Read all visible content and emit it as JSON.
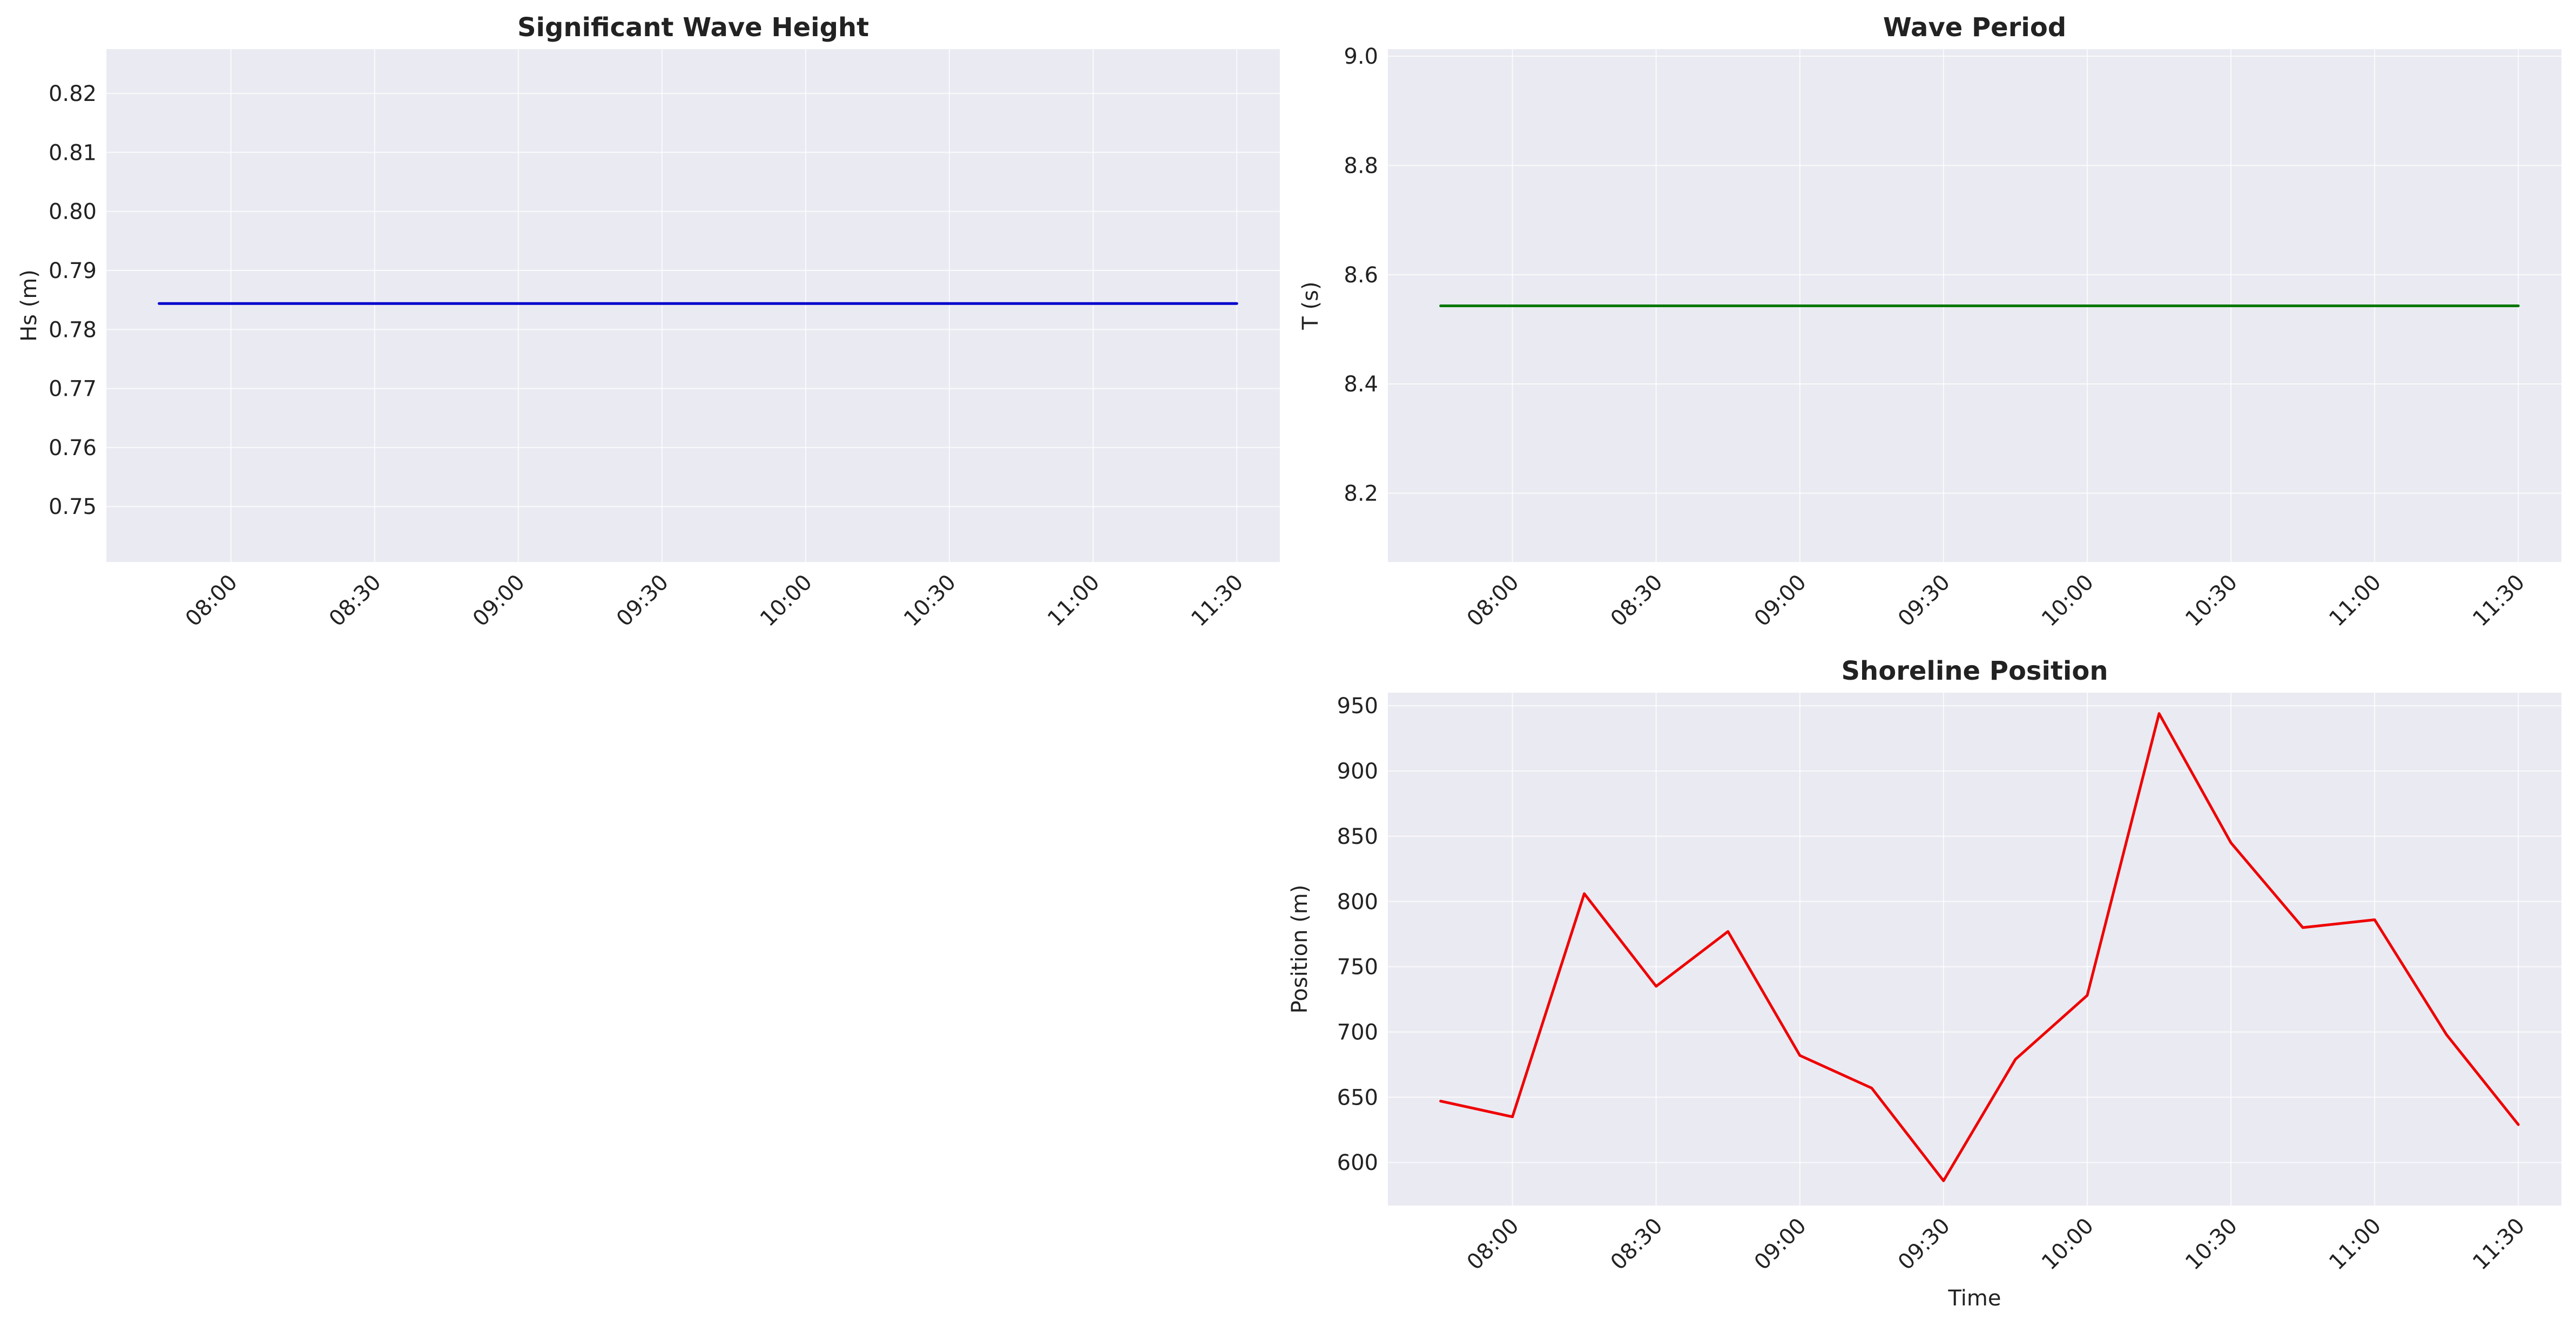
{
  "chart_data": [
    {
      "id": "wave-height",
      "type": "line",
      "title": "Significant Wave Height",
      "xlabel": "",
      "ylabel": "Hs (m)",
      "x": [
        "07:45",
        "08:00",
        "08:15",
        "08:30",
        "08:45",
        "09:00",
        "09:15",
        "09:30",
        "09:45",
        "10:00",
        "10:15",
        "10:30",
        "10:45",
        "11:00",
        "11:15",
        "11:30"
      ],
      "series": [
        {
          "color": "#0000cc",
          "values": [
            0.7844,
            0.7844,
            0.7844,
            0.7844,
            0.7844,
            0.7844,
            0.7844,
            0.7844,
            0.7844,
            0.7844,
            0.7844,
            0.7844,
            0.7844,
            0.7844,
            0.7844,
            0.7844
          ]
        }
      ],
      "xlim": [
        "07:34",
        "11:39"
      ],
      "ylim": [
        0.7406,
        0.8275
      ],
      "xticks": [
        "08:00",
        "08:30",
        "09:00",
        "09:30",
        "10:00",
        "10:30",
        "11:00",
        "11:30"
      ],
      "yticks": [
        "0.75",
        "0.76",
        "0.77",
        "0.78",
        "0.79",
        "0.80",
        "0.81",
        "0.82"
      ],
      "grid": true
    },
    {
      "id": "wave-period",
      "type": "line",
      "title": "Wave Period",
      "xlabel": "",
      "ylabel": "T (s)",
      "x": [
        "07:45",
        "08:00",
        "08:15",
        "08:30",
        "08:45",
        "09:00",
        "09:15",
        "09:30",
        "09:45",
        "10:00",
        "10:15",
        "10:30",
        "10:45",
        "11:00",
        "11:15",
        "11:30"
      ],
      "series": [
        {
          "color": "#007700",
          "values": [
            8.543,
            8.543,
            8.543,
            8.543,
            8.543,
            8.543,
            8.543,
            8.543,
            8.543,
            8.543,
            8.543,
            8.543,
            8.543,
            8.543,
            8.543,
            8.543
          ]
        }
      ],
      "xlim": [
        "07:34",
        "11:39"
      ],
      "ylim": [
        8.074,
        9.013
      ],
      "xticks": [
        "08:00",
        "08:30",
        "09:00",
        "09:30",
        "10:00",
        "10:30",
        "11:00",
        "11:30"
      ],
      "yticks": [
        "8.2",
        "8.4",
        "8.6",
        "8.8",
        "9.0"
      ],
      "grid": true
    },
    {
      "id": "shoreline",
      "type": "line",
      "title": "Shoreline Position",
      "xlabel": "Time",
      "ylabel": "Position (m)",
      "x": [
        "07:45",
        "08:00",
        "08:15",
        "08:30",
        "08:45",
        "09:00",
        "09:15",
        "09:30",
        "09:45",
        "10:00",
        "10:15",
        "10:30",
        "10:45",
        "11:00",
        "11:15",
        "11:30"
      ],
      "series": [
        {
          "color": "#ee0000",
          "values": [
            647,
            635,
            806,
            735,
            777,
            682,
            657,
            586,
            679,
            728,
            944,
            845,
            780,
            786,
            698,
            629
          ]
        }
      ],
      "xlim": [
        "07:34",
        "11:39"
      ],
      "ylim": [
        567,
        960
      ],
      "xticks": [
        "08:00",
        "08:30",
        "09:00",
        "09:30",
        "10:00",
        "10:30",
        "11:00",
        "11:30"
      ],
      "yticks": [
        "600",
        "650",
        "700",
        "750",
        "800",
        "850",
        "900",
        "950"
      ],
      "grid": true
    }
  ]
}
